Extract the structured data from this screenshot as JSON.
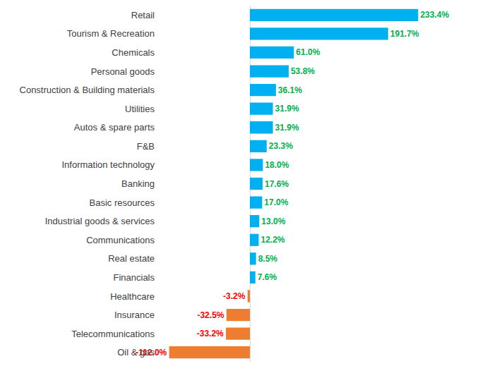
{
  "chart_data": {
    "type": "bar",
    "orientation": "horizontal",
    "data_labels": true,
    "tick_labels": "y",
    "grid": false,
    "categories": [
      "Retail",
      "Tourism & Recreation",
      "Chemicals",
      "Personal goods",
      "Construction & Building materials",
      "Utilities",
      "Autos & spare parts",
      "F&B",
      "Information technology",
      "Banking",
      "Basic resources",
      "Industrial goods & services",
      "Communications",
      "Real estate",
      "Financials",
      "Healthcare",
      "Insurance",
      "Telecommunications",
      "Oil & gas"
    ],
    "values": [
      233.4,
      191.7,
      61.0,
      53.8,
      36.1,
      31.9,
      31.9,
      23.3,
      18.0,
      17.6,
      17.0,
      13.0,
      12.2,
      8.5,
      7.6,
      -3.2,
      -32.5,
      -33.2,
      -112.0
    ],
    "value_labels": [
      "233.4%",
      "191.7%",
      "61.0%",
      "53.8%",
      "36.1%",
      "31.9%",
      "31.9%",
      "23.3%",
      "18.0%",
      "17.6%",
      "17.0%",
      "13.0%",
      "12.2%",
      "8.5%",
      "7.6%",
      "-3.2%",
      "-32.5%",
      "-33.2%",
      "-112.0%"
    ],
    "colors": [
      "#00b0f0",
      "#00b0f0",
      "#00b0f0",
      "#00b0f0",
      "#00b0f0",
      "#00b0f0",
      "#00b0f0",
      "#00b0f0",
      "#00b0f0",
      "#00b0f0",
      "#00b0f0",
      "#00b0f0",
      "#00b0f0",
      "#00b0f0",
      "#00b0f0",
      "#ed7d31",
      "#ed7d31",
      "#ed7d31",
      "#ed7d31"
    ]
  }
}
